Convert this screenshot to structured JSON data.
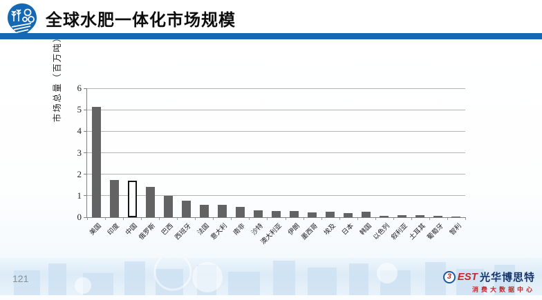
{
  "header": {
    "title": "全球水肥一体化市场规模"
  },
  "footer": {
    "page_number": "121",
    "brand": {
      "circle_glyph": "3",
      "est": "EST",
      "name": "光华博思特",
      "subtitle": "消费大数据中心"
    }
  },
  "colors": {
    "accent_blue": "#1569b4",
    "bar_gray": "#636363",
    "highlight_border": "#141414",
    "gridline": "#b3b3b3",
    "brand_red": "#c3272b",
    "brand_navy": "#17356d"
  },
  "chart_data": {
    "type": "bar",
    "title": "全球水肥一体化市场规模",
    "ylabel": "市场总量（百万吨）",
    "xlabel": "",
    "ylim": [
      0,
      6
    ],
    "yticks": [
      0,
      1,
      2,
      3,
      4,
      5,
      6
    ],
    "grid": true,
    "legend": "none",
    "categories": [
      "美国",
      "印度",
      "中国",
      "俄罗斯",
      "巴西",
      "西班牙",
      "法国",
      "意大利",
      "南非",
      "沙特",
      "澳大利亚",
      "伊朗",
      "墨西哥",
      "埃及",
      "日本",
      "韩国",
      "以色列",
      "叙利亚",
      "土耳其",
      "葡萄牙",
      "智利"
    ],
    "values": [
      5.15,
      1.72,
      1.7,
      1.4,
      1.0,
      0.78,
      0.57,
      0.58,
      0.47,
      0.33,
      0.28,
      0.3,
      0.22,
      0.25,
      0.2,
      0.25,
      0.08,
      0.1,
      0.1,
      0.05,
      0.04
    ],
    "highlight_index": 2,
    "highlight_style": "hollow-outlined"
  }
}
